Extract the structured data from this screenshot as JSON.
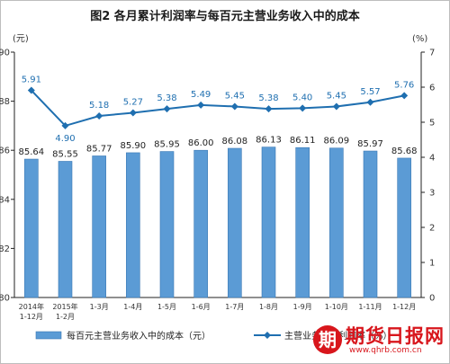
{
  "chart_data": {
    "type": "bar+line",
    "title": "图2  各月累计利润率与每百元主营业务收入中的成本",
    "categories": [
      [
        "2014年",
        "1-12月"
      ],
      [
        "2015年",
        "1-2月"
      ],
      [
        "1-3月"
      ],
      [
        "1-4月"
      ],
      [
        "1-5月"
      ],
      [
        "1-6月"
      ],
      [
        "1-7月"
      ],
      [
        "1-8月"
      ],
      [
        "1-9月"
      ],
      [
        "1-10月"
      ],
      [
        "1-11月"
      ],
      [
        "1-12月"
      ]
    ],
    "bar_series": {
      "name": "每百元主营业务收入中的成本（元）",
      "values": [
        85.64,
        85.55,
        85.77,
        85.9,
        85.95,
        86.0,
        86.08,
        86.13,
        86.11,
        86.09,
        85.97,
        85.68
      ],
      "labels": [
        "85.64",
        "85.55",
        "85.77",
        "85.90",
        "85.95",
        "86.00",
        "86.08",
        "86.13",
        "86.11",
        "86.09",
        "85.97",
        "85.68"
      ],
      "color": "#5b9bd5"
    },
    "line_series": {
      "name": "主营业务收入利润率（%）",
      "values": [
        5.91,
        4.9,
        5.18,
        5.27,
        5.38,
        5.49,
        5.45,
        5.38,
        5.4,
        5.45,
        5.57,
        5.76
      ],
      "labels": [
        "5.91",
        "4.90",
        "5.18",
        "5.27",
        "5.38",
        "5.49",
        "5.45",
        "5.38",
        "5.40",
        "5.45",
        "5.57",
        "5.76"
      ],
      "color": "#1f6fb0"
    },
    "left_axis": {
      "unit": "(元)",
      "range": [
        80,
        90
      ],
      "ticks": [
        80,
        82,
        84,
        86,
        88,
        90
      ]
    },
    "right_axis": {
      "unit": "(%)",
      "range": [
        0,
        7
      ],
      "ticks": [
        0,
        1,
        2,
        3,
        4,
        5,
        6,
        7
      ]
    },
    "grid": false,
    "legend_position": "bottom"
  },
  "watermark": {
    "badge": "期",
    "name": "期货日报网",
    "url": "www.qhrb.com.cn"
  }
}
